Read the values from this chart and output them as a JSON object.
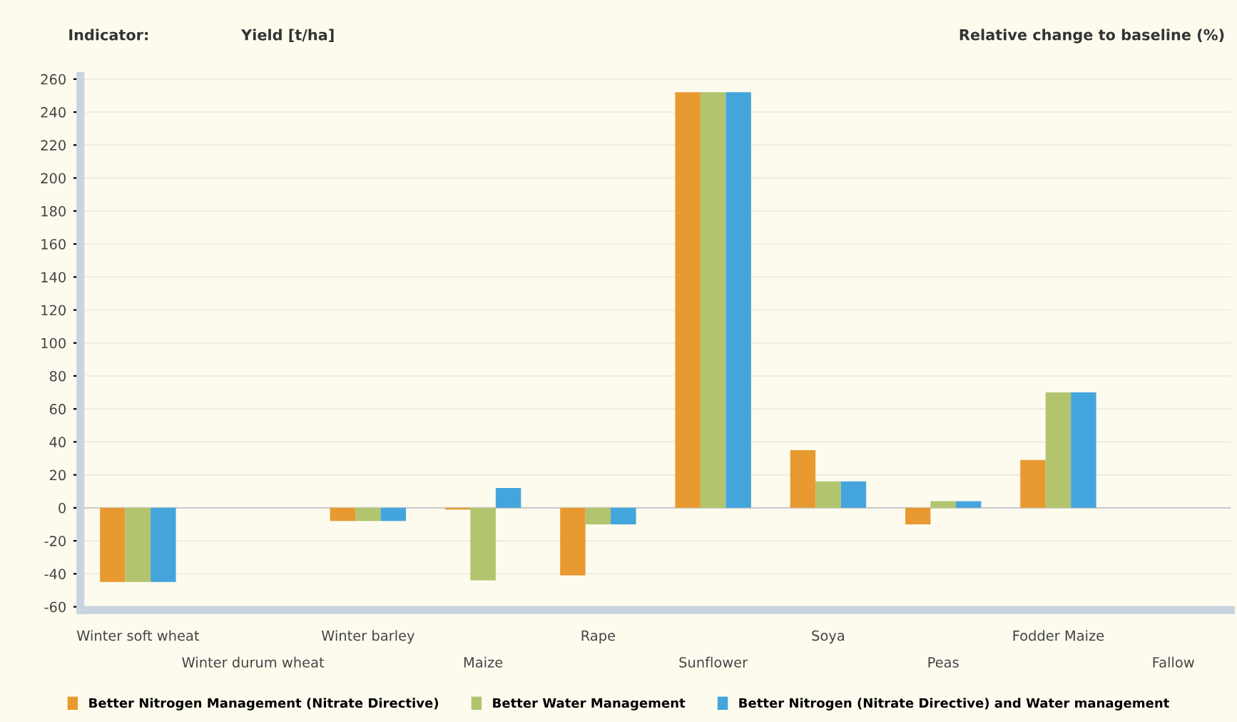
{
  "chart_data": {
    "type": "bar",
    "annotations": [
      "Indicator:",
      "Yield [t/ha]",
      "Relative change to baseline (%)"
    ],
    "categories": [
      "Winter soft wheat",
      "Winter durum wheat",
      "Winter barley",
      "Maize",
      "Rape",
      "Sunflower",
      "Soya",
      "Peas",
      "Fodder Maize",
      "Fallow"
    ],
    "series": [
      {
        "name": "Better Nitrogen Management (Nitrate Directive)",
        "color": "#e89a30",
        "values": [
          -45,
          null,
          -8,
          -1,
          -41,
          252,
          35,
          -10,
          29,
          null
        ]
      },
      {
        "name": "Better Water Management",
        "color": "#b2c46e",
        "values": [
          -45,
          null,
          -8,
          -44,
          -10,
          252,
          16,
          4,
          70,
          null
        ]
      },
      {
        "name": "Better Nitrogen (Nitrate Directive) and Water management",
        "color": "#44a5dd",
        "values": [
          -45,
          null,
          -8,
          12,
          -10,
          252,
          16,
          4,
          70,
          null
        ]
      }
    ],
    "ylim": [
      -62,
      262
    ],
    "yticks": [
      -60,
      -40,
      -20,
      0,
      20,
      40,
      60,
      80,
      100,
      120,
      140,
      160,
      180,
      200,
      220,
      240,
      260
    ],
    "grid": "y",
    "legend": "bottom"
  }
}
